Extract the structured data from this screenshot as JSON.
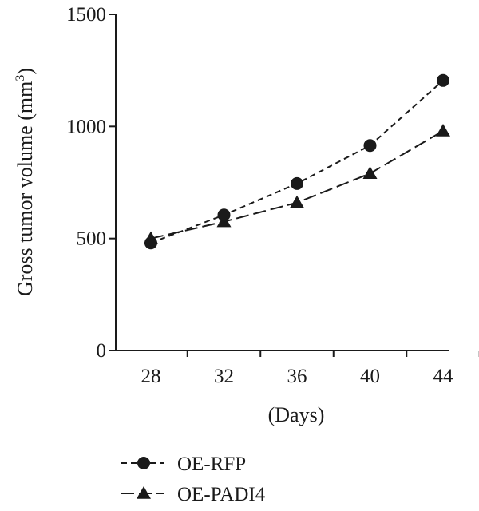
{
  "chart_data": {
    "type": "line",
    "x": [
      28,
      32,
      36,
      40,
      44
    ],
    "xlabel": "(Days)",
    "ylabel_main": "Gross tumor volume (mm",
    "ylabel_sup": "3",
    "ylabel_close": ")",
    "ylim": [
      0,
      1500
    ],
    "yticks": [
      0,
      500,
      1000,
      1500
    ],
    "xtick_labels": [
      "28",
      "32",
      "36",
      "40",
      "44"
    ],
    "ytick_labels": [
      "0",
      "500",
      "1000",
      "1500"
    ],
    "grid": false,
    "legend_position": "bottom-left",
    "series": [
      {
        "name": "OE-RFP",
        "marker": "circle",
        "dash": "short",
        "color": "#1a1a1a",
        "values": [
          480,
          605,
          745,
          915,
          1205
        ]
      },
      {
        "name": "OE-PADI4",
        "marker": "triangle",
        "dash": "long",
        "color": "#1a1a1a",
        "values": [
          500,
          575,
          660,
          790,
          980
        ]
      }
    ]
  }
}
